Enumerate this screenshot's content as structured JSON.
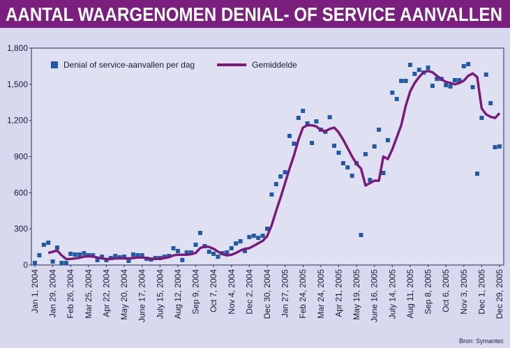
{
  "chart_data": {
    "type": "scatter-line",
    "title": "AANTAL WAARGENOMEN DENIAL- OF SERVICE AANVALLEN",
    "source": "Bron: Symantec",
    "categories": [
      "Jan 1, 2004",
      null,
      null,
      null,
      "Jan 29, 2004",
      null,
      null,
      null,
      "Feb 26, 2004",
      null,
      null,
      null,
      "Mar 25, 2004",
      null,
      null,
      null,
      "Apr 22, 2004",
      null,
      null,
      null,
      "May 20, 2004",
      null,
      null,
      null,
      "June 17, 2004",
      null,
      null,
      null,
      "July 15, 2004",
      null,
      null,
      null,
      "Aug 12, 2004",
      null,
      null,
      null,
      "Sep 9, 2004",
      null,
      null,
      null,
      "Oct 7, 2004",
      null,
      null,
      null,
      "Nov 4, 2004",
      null,
      null,
      null,
      "Dec 2, 2004",
      null,
      null,
      null,
      "Dec 30, 2004",
      null,
      null,
      null,
      "Jan 27, 2005",
      null,
      null,
      null,
      "Feb 24, 2005",
      null,
      null,
      null,
      "Mar 24, 2005",
      null,
      null,
      null,
      "Apr 21, 2005",
      null,
      null,
      null,
      "May 19, 2005",
      null,
      null,
      null,
      "June 16, 2005",
      null,
      null,
      null,
      "July 14, 2005",
      null,
      null,
      null,
      "Aug 11, 2005",
      null,
      null,
      null,
      "Sep 8, 2005",
      null,
      null,
      null,
      "Oct 6, 2005",
      null,
      null,
      null,
      "Nov 3, 2005",
      null,
      null,
      null,
      "Dec 1, 2005",
      null,
      null,
      null,
      "Dec 29, 2005"
    ],
    "series": [
      {
        "name": "Denial of service-aanvallen per dag",
        "kind": "scatter",
        "color": "#1f5aa6",
        "values": [
          17,
          81,
          168,
          185,
          29,
          145,
          17,
          17,
          93,
          87,
          87,
          98,
          81,
          81,
          41,
          69,
          41,
          58,
          75,
          64,
          69,
          35,
          87,
          81,
          81,
          52,
          46,
          58,
          58,
          69,
          75,
          139,
          116,
          41,
          104,
          104,
          168,
          266,
          156,
          110,
          93,
          69,
          98,
          104,
          139,
          179,
          197,
          116,
          232,
          243,
          226,
          243,
          301,
          585,
          671,
          735,
          770,
          1071,
          1007,
          1221,
          1279,
          1175,
          1013,
          1192,
          1123,
          1106,
          1227,
          990,
          932,
          845,
          810,
          741,
          845,
          249,
          920,
          706,
          984,
          1123,
          764,
          1036,
          1430,
          1378,
          1528,
          1528,
          1661,
          1586,
          1620,
          1597,
          1638,
          1487,
          1545,
          1545,
          1493,
          1482,
          1534,
          1534,
          1650,
          1667,
          1476,
          758,
          1221,
          1580,
          1343,
          978,
          984
        ]
      },
      {
        "name": "Gemiddelde",
        "kind": "line",
        "color": "#7a1a7a",
        "values": [
          null,
          null,
          null,
          100,
          110,
          120,
          80,
          50,
          50,
          55,
          60,
          70,
          72,
          70,
          62,
          55,
          50,
          50,
          55,
          55,
          55,
          55,
          58,
          62,
          62,
          58,
          52,
          50,
          52,
          58,
          65,
          80,
          85,
          85,
          85,
          90,
          100,
          140,
          155,
          150,
          135,
          110,
          90,
          80,
          85,
          100,
          120,
          135,
          140,
          160,
          180,
          200,
          240,
          330,
          450,
          560,
          680,
          800,
          910,
          1040,
          1140,
          1160,
          1160,
          1150,
          1120,
          1110,
          1130,
          1140,
          1100,
          1040,
          970,
          900,
          840,
          800,
          660,
          680,
          700,
          700,
          900,
          880,
          960,
          1060,
          1160,
          1320,
          1440,
          1510,
          1560,
          1600,
          1610,
          1600,
          1570,
          1540,
          1520,
          1510,
          1500,
          1510,
          1530,
          1570,
          1590,
          1560,
          1300,
          1250,
          1230,
          1220,
          1260
        ]
      }
    ],
    "ylim": [
      0,
      1800
    ],
    "yticks": [
      0,
      300,
      600,
      900,
      {
        "value": 1200,
        "label": "1,200"
      },
      {
        "value": 1500,
        "label": "1,500"
      },
      {
        "value": 1800,
        "label": "1,800"
      }
    ],
    "grid": false,
    "legend": "top-left"
  }
}
